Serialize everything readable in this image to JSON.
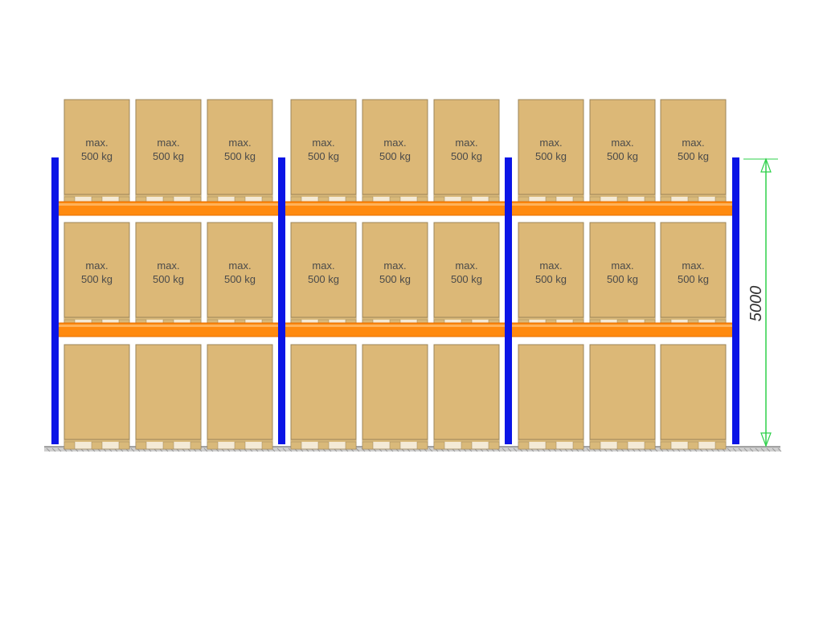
{
  "diagram": {
    "pallet_label_line1": "max.",
    "pallet_label_line2": "500 kg",
    "height_dimension": "5000",
    "bays": 3,
    "pallets_per_bay": 3,
    "levels": [
      {
        "name": "top",
        "labeled": true
      },
      {
        "name": "middle",
        "labeled": true
      },
      {
        "name": "floor",
        "labeled": false
      }
    ],
    "colors": {
      "upright": "#0a14e6",
      "beam": "#ff8a0f",
      "box": "#dcb877",
      "box_border": "#9b8458",
      "pallet_wood": "#d9b97a",
      "dimension_line": "#2ed14a",
      "floor": "#8c8c8c"
    }
  }
}
